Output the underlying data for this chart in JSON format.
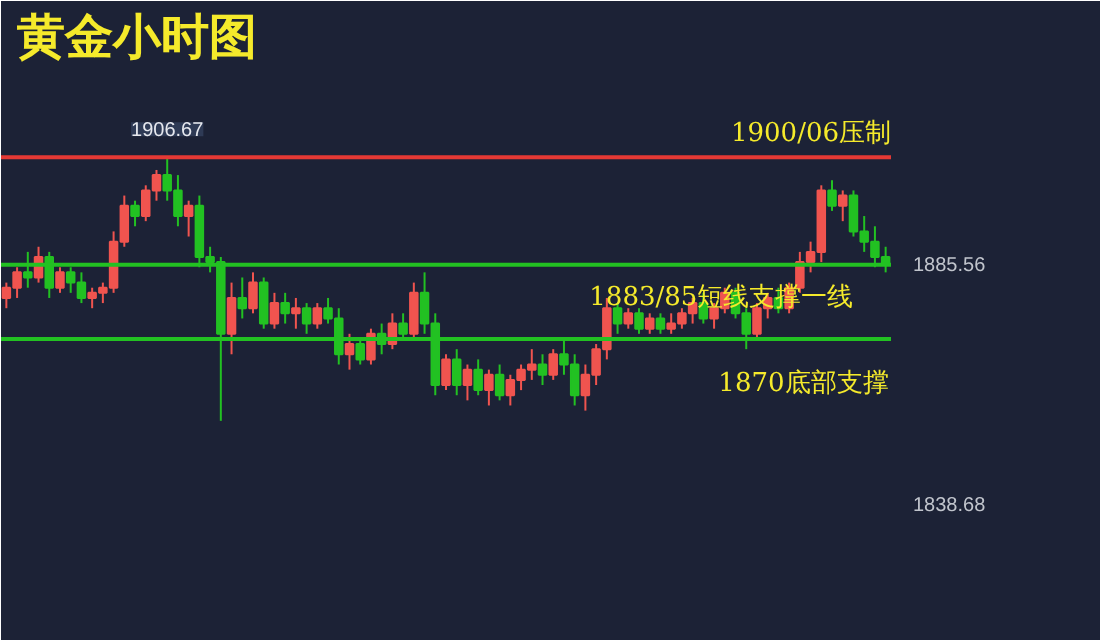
{
  "chart_data": {
    "type": "candlestick",
    "title": "黄金小时图",
    "categories": [
      null,
      null,
      null,
      null,
      null,
      null,
      null,
      null,
      null,
      null,
      null,
      null,
      null,
      null,
      null,
      null,
      null,
      null,
      null,
      null,
      null,
      null,
      null,
      null,
      null,
      null,
      null,
      null,
      null,
      null,
      null,
      null,
      null,
      null,
      null,
      null,
      null,
      null,
      null,
      null,
      null,
      null,
      null,
      null,
      null,
      null,
      null,
      null,
      null,
      null,
      null,
      null,
      null,
      null,
      null,
      null,
      null,
      null,
      null,
      null,
      null,
      null,
      null,
      null,
      null,
      null,
      null,
      null,
      null,
      null,
      null,
      null,
      null,
      null,
      null,
      null,
      null,
      null,
      null,
      null,
      null,
      null,
      null
    ],
    "ohlc": [
      [
        1879,
        1882,
        1877,
        1881
      ],
      [
        1881,
        1885,
        1879,
        1884
      ],
      [
        1884,
        1888,
        1881,
        1883
      ],
      [
        1883,
        1889,
        1882,
        1887
      ],
      [
        1887,
        1888,
        1879,
        1881
      ],
      [
        1881,
        1885,
        1880,
        1884
      ],
      [
        1884,
        1885,
        1880,
        1882
      ],
      [
        1882,
        1884,
        1878,
        1879
      ],
      [
        1879,
        1881,
        1877,
        1880
      ],
      [
        1880,
        1882,
        1878,
        1881
      ],
      [
        1881,
        1892,
        1880,
        1890
      ],
      [
        1890,
        1899,
        1889,
        1897
      ],
      [
        1897,
        1898,
        1893,
        1895
      ],
      [
        1895,
        1901,
        1894,
        1900
      ],
      [
        1900,
        1904,
        1898,
        1903
      ],
      [
        1903,
        1906.67,
        1898,
        1900
      ],
      [
        1900,
        1903,
        1893,
        1895
      ],
      [
        1895,
        1898,
        1891,
        1897
      ],
      [
        1897,
        1899,
        1885,
        1887
      ],
      [
        1887,
        1889,
        1884,
        1886
      ],
      [
        1886,
        1887,
        1855,
        1872
      ],
      [
        1872,
        1882,
        1868,
        1879
      ],
      [
        1879,
        1883,
        1875,
        1877
      ],
      [
        1877,
        1884,
        1876,
        1882
      ],
      [
        1882,
        1883,
        1873,
        1874
      ],
      [
        1874,
        1880,
        1873,
        1878
      ],
      [
        1878,
        1880,
        1874,
        1876
      ],
      [
        1876,
        1879,
        1873,
        1877
      ],
      [
        1877,
        1878,
        1872,
        1874
      ],
      [
        1874,
        1878,
        1873,
        1877
      ],
      [
        1877,
        1879,
        1874,
        1875
      ],
      [
        1875,
        1877,
        1866,
        1868
      ],
      [
        1868,
        1872,
        1865,
        1870
      ],
      [
        1870,
        1871,
        1866,
        1867
      ],
      [
        1867,
        1873,
        1866,
        1872
      ],
      [
        1872,
        1874,
        1868,
        1870
      ],
      [
        1870,
        1876,
        1869,
        1874
      ],
      [
        1874,
        1876,
        1871,
        1872
      ],
      [
        1872,
        1882,
        1871,
        1880
      ],
      [
        1880,
        1884,
        1872,
        1874
      ],
      [
        1874,
        1876,
        1860,
        1862
      ],
      [
        1862,
        1868,
        1861,
        1867
      ],
      [
        1867,
        1869,
        1860,
        1862
      ],
      [
        1862,
        1866,
        1859,
        1865
      ],
      [
        1865,
        1867,
        1860,
        1861
      ],
      [
        1861,
        1865,
        1858,
        1864
      ],
      [
        1864,
        1866,
        1859,
        1860
      ],
      [
        1860,
        1864,
        1858,
        1863
      ],
      [
        1863,
        1866,
        1861,
        1865
      ],
      [
        1865,
        1869,
        1863,
        1866
      ],
      [
        1866,
        1868,
        1862,
        1864
      ],
      [
        1864,
        1869,
        1863,
        1868
      ],
      [
        1868,
        1871,
        1864,
        1866
      ],
      [
        1866,
        1868,
        1858,
        1860
      ],
      [
        1860,
        1866,
        1857,
        1864
      ],
      [
        1864,
        1870,
        1862,
        1869
      ],
      [
        1869,
        1879,
        1867,
        1877
      ],
      [
        1877,
        1878,
        1872,
        1874
      ],
      [
        1874,
        1877,
        1873,
        1876
      ],
      [
        1876,
        1877,
        1872,
        1873
      ],
      [
        1873,
        1876,
        1872,
        1875
      ],
      [
        1875,
        1876,
        1872,
        1873
      ],
      [
        1873,
        1876,
        1872,
        1874
      ],
      [
        1874,
        1877,
        1873,
        1876
      ],
      [
        1876,
        1879,
        1874,
        1878
      ],
      [
        1878,
        1880,
        1874,
        1875
      ],
      [
        1875,
        1878,
        1873,
        1877
      ],
      [
        1877,
        1881,
        1876,
        1880
      ],
      [
        1880,
        1881,
        1875,
        1876
      ],
      [
        1876,
        1877,
        1869,
        1872
      ],
      [
        1872,
        1878,
        1871,
        1877
      ],
      [
        1877,
        1880,
        1875,
        1879
      ],
      [
        1879,
        1881,
        1876,
        1877
      ],
      [
        1877,
        1882,
        1876,
        1881
      ],
      [
        1881,
        1888,
        1880,
        1886
      ],
      [
        1886,
        1890,
        1884,
        1888
      ],
      [
        1888,
        1901,
        1886,
        1900
      ],
      [
        1900,
        1902,
        1896,
        1897
      ],
      [
        1897,
        1900,
        1894,
        1899
      ],
      [
        1899,
        1900,
        1891,
        1892
      ],
      [
        1892,
        1895,
        1888,
        1890
      ],
      [
        1890,
        1893,
        1885,
        1887
      ],
      [
        1887,
        1889,
        1884,
        1885.56
      ]
    ],
    "colors": [
      "#f0544f",
      "#f0544f",
      "#22c122",
      "#f0544f",
      "#22c122",
      "#f0544f",
      "#22c122",
      "#22c122",
      "#f0544f",
      "#f0544f",
      "#f0544f",
      "#f0544f",
      "#22c122",
      "#f0544f",
      "#f0544f",
      "#22c122",
      "#22c122",
      "#f0544f",
      "#22c122",
      "#22c122",
      "#22c122",
      "#f0544f",
      "#22c122",
      "#f0544f",
      "#22c122",
      "#f0544f",
      "#22c122",
      "#f0544f",
      "#22c122",
      "#f0544f",
      "#22c122",
      "#22c122",
      "#f0544f",
      "#22c122",
      "#f0544f",
      "#22c122",
      "#f0544f",
      "#22c122",
      "#f0544f",
      "#22c122",
      "#22c122",
      "#f0544f",
      "#22c122",
      "#f0544f",
      "#22c122",
      "#f0544f",
      "#22c122",
      "#f0544f",
      "#f0544f",
      "#f0544f",
      "#22c122",
      "#f0544f",
      "#22c122",
      "#22c122",
      "#f0544f",
      "#f0544f",
      "#f0544f",
      "#22c122",
      "#f0544f",
      "#22c122",
      "#f0544f",
      "#22c122",
      "#f0544f",
      "#f0544f",
      "#f0544f",
      "#22c122",
      "#f0544f",
      "#f0544f",
      "#22c122",
      "#22c122",
      "#f0544f",
      "#f0544f",
      "#22c122",
      "#f0544f",
      "#f0544f",
      "#f0544f",
      "#f0544f",
      "#22c122",
      "#f0544f",
      "#22c122",
      "#22c122",
      "#22c122",
      "#22c122"
    ],
    "ylim": [
      1812,
      1937
    ],
    "yticks": [
      1885.56,
      1838.68
    ],
    "ref_lines": [
      {
        "axis": "y",
        "value": 1906.5,
        "label": "1900/06压制",
        "color": "#e53935"
      },
      {
        "axis": "y",
        "value": 1885.5,
        "label": "1883/85短线支撑一线",
        "color": "#22c122"
      },
      {
        "axis": "y",
        "value": 1871,
        "label": "1870底部支撑",
        "color": "#22c122"
      }
    ],
    "annotations": [
      {
        "text": "1906.67",
        "y": 1906.67
      }
    ],
    "grid": false
  }
}
